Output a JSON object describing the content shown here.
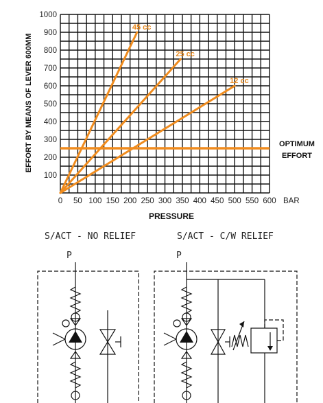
{
  "chart_data": {
    "type": "line",
    "xlabel": "PRESSURE",
    "xunit": "BAR",
    "ylabel": "EFFORT BY MEANS OF LEVER 600MM",
    "xlim": [
      0,
      600
    ],
    "ylim": [
      0,
      1000
    ],
    "x_ticks": [
      "0",
      "50",
      "100",
      "150",
      "200",
      "250",
      "300",
      "350",
      "400",
      "450",
      "500",
      "550",
      "600"
    ],
    "y_ticks": [
      "100",
      "200",
      "300",
      "400",
      "500",
      "600",
      "700",
      "800",
      "900",
      "1000"
    ],
    "grid": true,
    "series": [
      {
        "name": "45 cc",
        "color": "#f08c1e",
        "x": [
          0,
          220
        ],
        "y": [
          0,
          900
        ]
      },
      {
        "name": "25 cc",
        "color": "#f08c1e",
        "x": [
          0,
          345
        ],
        "y": [
          0,
          750
        ]
      },
      {
        "name": "12 cc",
        "color": "#f08c1e",
        "x": [
          0,
          500
        ],
        "y": [
          0,
          600
        ]
      }
    ],
    "reference_line": {
      "y": 250,
      "label_line1": "OPTIMUM",
      "label_line2": "EFFORT",
      "color": "#f08c1e"
    }
  },
  "schematics": {
    "left_title": "S/ACT - NO RELIEF",
    "right_title": "S/ACT - C/W RELIEF",
    "left_port": "P",
    "right_port": "P"
  }
}
